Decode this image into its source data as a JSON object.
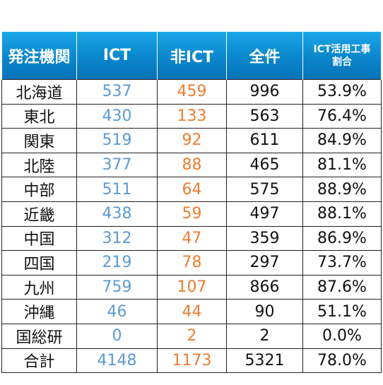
{
  "headers": {
    "agency": "発注機関",
    "ict": "ICT",
    "non_ict": "非ICT",
    "total": "全件",
    "ratio_line1": "ICT活用工事",
    "ratio_line2": "割合"
  },
  "rows": [
    {
      "name": "北海道",
      "ict": "537",
      "non_ict": "459",
      "total": "996",
      "ratio": "53.9%"
    },
    {
      "name": "東北",
      "ict": "430",
      "non_ict": "133",
      "total": "563",
      "ratio": "76.4%"
    },
    {
      "name": "関東",
      "ict": "519",
      "non_ict": "92",
      "total": "611",
      "ratio": "84.9%"
    },
    {
      "name": "北陸",
      "ict": "377",
      "non_ict": "88",
      "total": "465",
      "ratio": "81.1%"
    },
    {
      "name": "中部",
      "ict": "511",
      "non_ict": "64",
      "total": "575",
      "ratio": "88.9%"
    },
    {
      "name": "近畿",
      "ict": "438",
      "non_ict": "59",
      "total": "497",
      "ratio": "88.1%"
    },
    {
      "name": "中国",
      "ict": "312",
      "non_ict": "47",
      "total": "359",
      "ratio": "86.9%"
    },
    {
      "name": "四国",
      "ict": "219",
      "non_ict": "78",
      "total": "297",
      "ratio": "73.7%"
    },
    {
      "name": "九州",
      "ict": "759",
      "non_ict": "107",
      "total": "866",
      "ratio": "87.6%"
    },
    {
      "name": "沖縄",
      "ict": "46",
      "non_ict": "44",
      "total": "90",
      "ratio": "51.1%"
    },
    {
      "name": "国総研",
      "ict": "0",
      "non_ict": "2",
      "total": "2",
      "ratio": "0.0%"
    },
    {
      "name": "合計",
      "ict": "4148",
      "non_ict": "1173",
      "total": "5321",
      "ratio": "78.0%"
    }
  ],
  "colors": {
    "header_bg": "#0a86cc",
    "ict_text": "#5b9bd5",
    "non_ict_text": "#ed7d31"
  }
}
